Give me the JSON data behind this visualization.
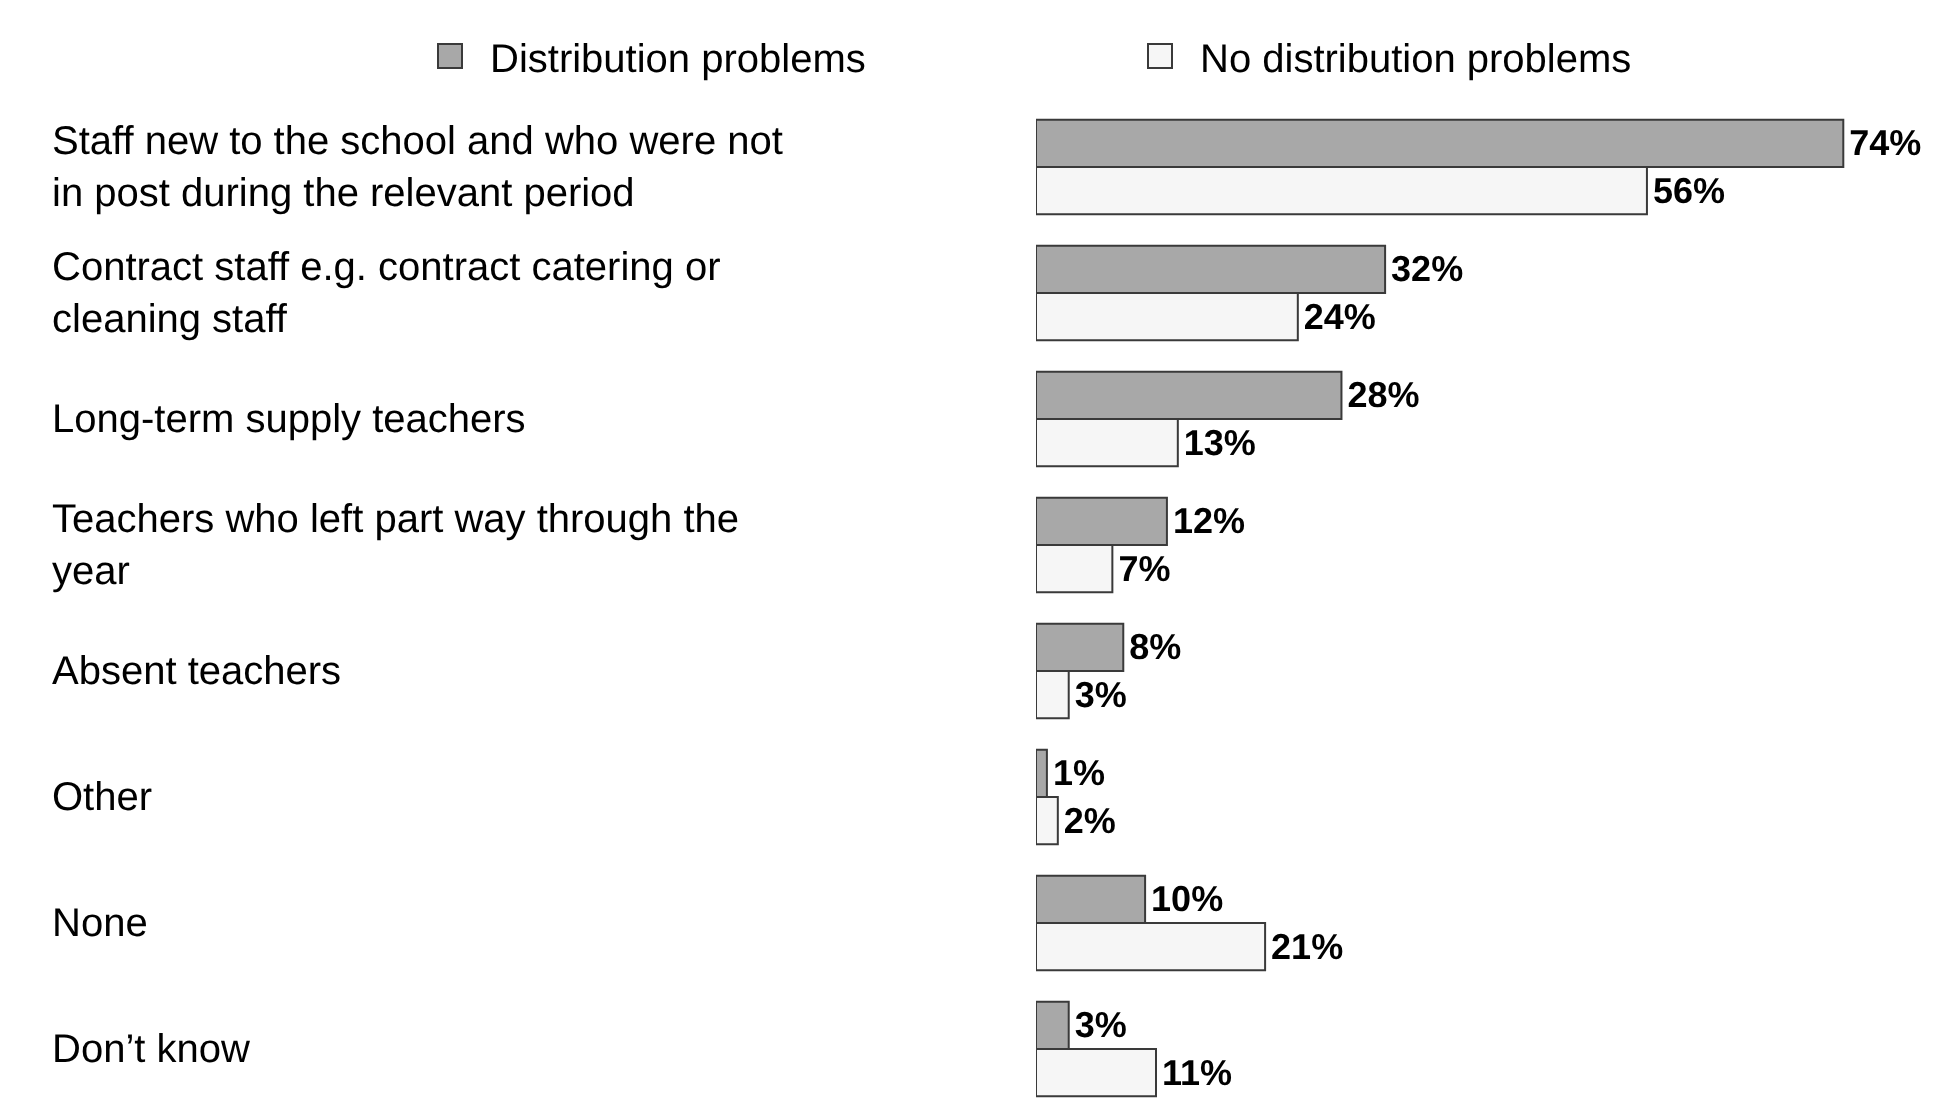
{
  "chart_data": {
    "type": "bar",
    "orientation": "horizontal",
    "categories": [
      "Staff new to the school and who were not in post during the relevant period",
      "Contract staff e.g. contract catering or cleaning staff",
      "Long-term supply teachers",
      "Teachers who left part way through the year",
      "Absent teachers",
      "Other",
      "None",
      "Don’t know"
    ],
    "series": [
      {
        "name": "Distribution problems",
        "color": "#a8a8a8",
        "values": [
          74,
          32,
          28,
          12,
          8,
          1,
          10,
          3
        ],
        "value_labels": [
          "74%",
          "32%",
          "28%",
          "12%",
          "8%",
          "1%",
          "10%",
          "3%"
        ]
      },
      {
        "name": "No distribution problems",
        "color": "#f6f6f6",
        "values": [
          56,
          24,
          13,
          7,
          3,
          2,
          21,
          11
        ],
        "value_labels": [
          "56%",
          "24%",
          "13%",
          "7%",
          "3%",
          "2%",
          "21%",
          "11%"
        ]
      }
    ],
    "legend": "top",
    "tick_labels": "y"
  }
}
